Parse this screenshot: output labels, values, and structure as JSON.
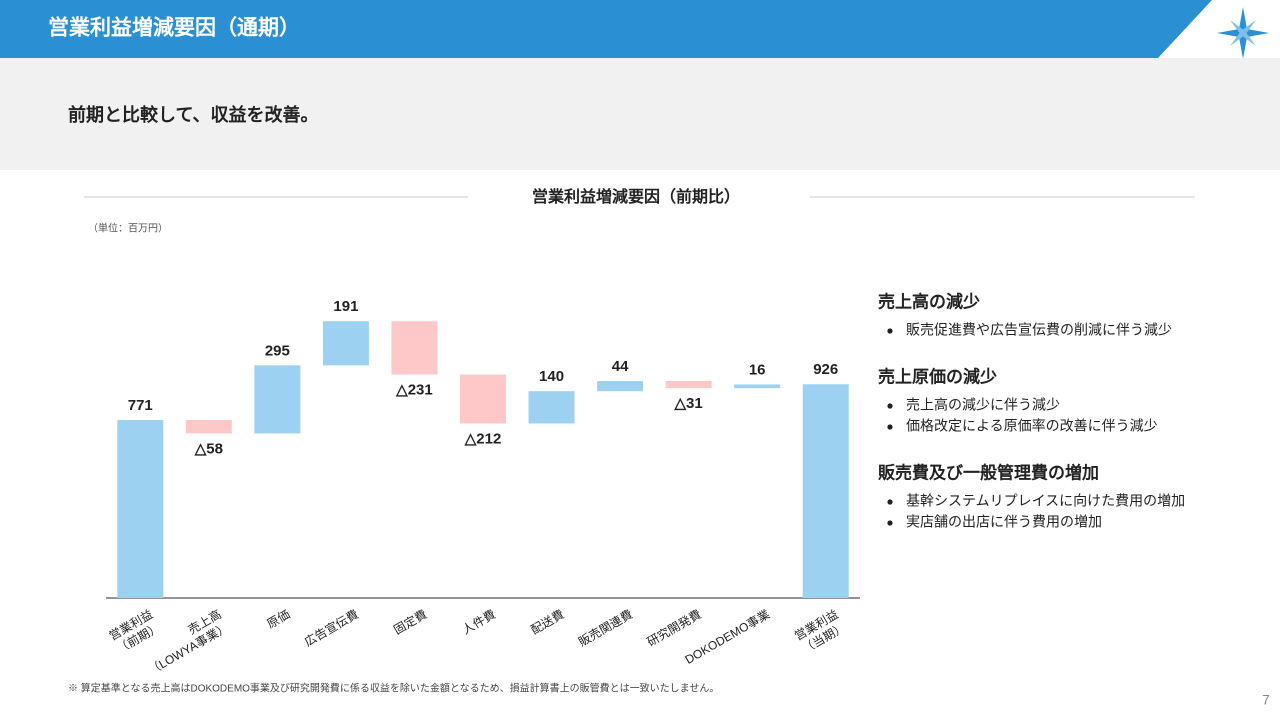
{
  "header": {
    "title": "営業利益増減要因（通期）"
  },
  "subtitle": "前期と比較して、収益を改善。",
  "chart_data": {
    "type": "waterfall",
    "title": "営業利益増減要因（前期比）",
    "unit": "（単位：百万円）",
    "categories": [
      "営業利益\n（前期）",
      "売上高\n（LOWYA事業）",
      "原価",
      "広告宣伝費",
      "固定費",
      "人件費",
      "配送費",
      "販売関連費",
      "研究開発費",
      "DOKODEMO事業",
      "営業利益\n（当期）"
    ],
    "values": [
      771,
      -58,
      295,
      191,
      -231,
      -212,
      140,
      44,
      -31,
      16,
      926
    ],
    "value_labels": [
      "771",
      "△58",
      "295",
      "191",
      "△231",
      "△212",
      "140",
      "44",
      "△31",
      "16",
      "926"
    ],
    "colors": {
      "increase": "#9dd1f1",
      "decrease": "#ffc8c8"
    },
    "ylim": [
      0,
      1200
    ]
  },
  "notes": [
    {
      "heading": "売上高の減少",
      "bullets": [
        "販売促進費や広告宣伝費の削減に伴う減少"
      ]
    },
    {
      "heading": "売上原価の減少",
      "bullets": [
        "売上高の減少に伴う減少",
        "価格改定による原価率の改善に伴う減少"
      ]
    },
    {
      "heading": "販売費及び一般管理費の増加",
      "bullets": [
        "基幹システムリプレイスに向けた費用の増加",
        "実店舗の出店に伴う費用の増加"
      ]
    }
  ],
  "footnote": "※ 算定基準となる売上高はDOKODEMO事業及び研究開発費に係る収益を除いた金額となるため、損益計算書上の販管費とは一致いたしません。",
  "page_number": "7"
}
